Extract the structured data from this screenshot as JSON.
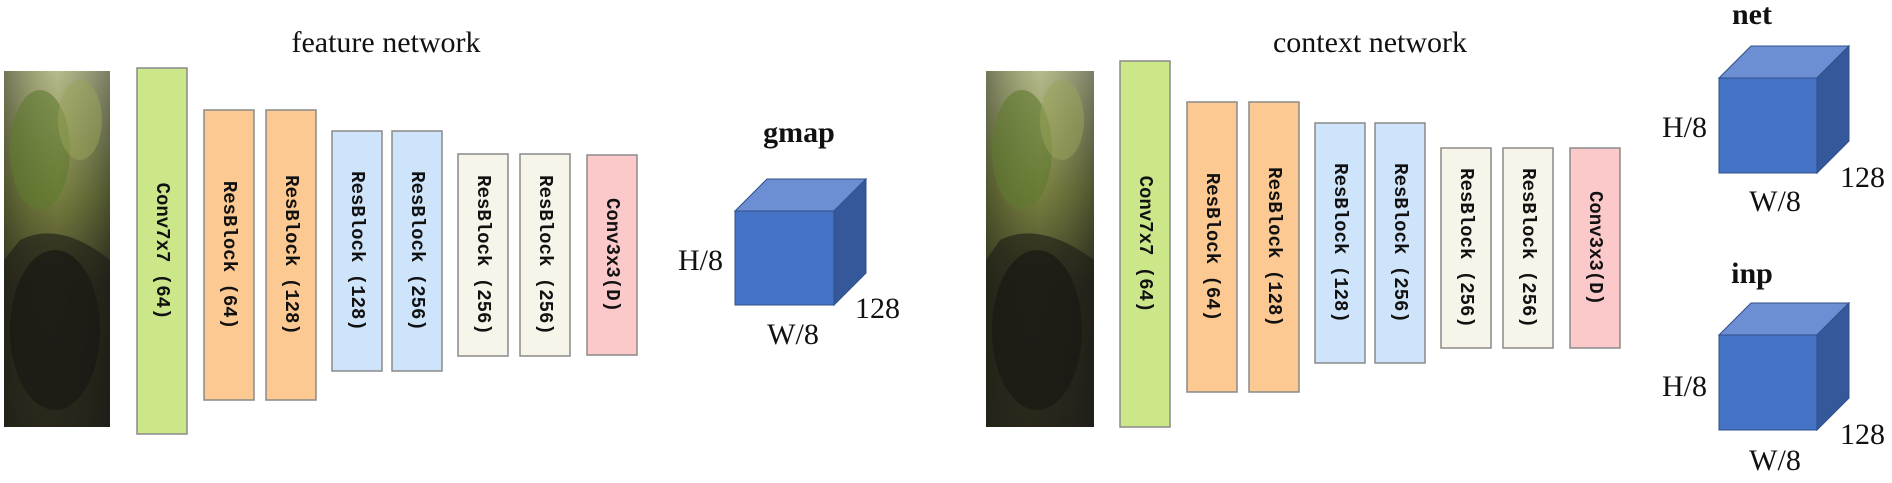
{
  "colors": {
    "conv7": "#cbe78a",
    "res_orange": "#fcc992",
    "res_blue": "#cde4fb",
    "res_cream": "#f7f4ea",
    "conv3": "#fcc9cb",
    "cube_front": "#4472c4",
    "cube_top": "#6b8fd2",
    "cube_side": "#34589a",
    "stroke": "#8a8a8a"
  },
  "feature": {
    "title": "feature network",
    "layers": [
      {
        "label": "Conv7x7 (64)",
        "color": "conv7"
      },
      {
        "label": "ResBlock (64)",
        "color": "res_orange"
      },
      {
        "label": "ResBlock (128)",
        "color": "res_orange"
      },
      {
        "label": "ResBlock (128)",
        "color": "res_blue"
      },
      {
        "label": "ResBlock (256)",
        "color": "res_blue"
      },
      {
        "label": "ResBlock (256)",
        "color": "res_cream"
      },
      {
        "label": "ResBlock (256)",
        "color": "res_cream"
      },
      {
        "label": "Conv3x3(D)",
        "color": "conv3"
      }
    ],
    "output": {
      "name": "gmap",
      "height": "H/8",
      "width": "W/8",
      "depth": "128"
    }
  },
  "context": {
    "title": "context network",
    "layers": [
      {
        "label": "Conv7x7 (64)",
        "color": "conv7"
      },
      {
        "label": "ResBlock (64)",
        "color": "res_orange"
      },
      {
        "label": "ResBlock (128)",
        "color": "res_orange"
      },
      {
        "label": "ResBlock (128)",
        "color": "res_blue"
      },
      {
        "label": "ResBlock (256)",
        "color": "res_blue"
      },
      {
        "label": "ResBlock (256)",
        "color": "res_cream"
      },
      {
        "label": "ResBlock (256)",
        "color": "res_cream"
      },
      {
        "label": "Conv3x3(D)",
        "color": "conv3"
      }
    ],
    "outputs": [
      {
        "name": "net",
        "height": "H/8",
        "width": "W/8",
        "depth": "128"
      },
      {
        "name": "inp",
        "height": "H/8",
        "width": "W/8",
        "depth": "128"
      }
    ]
  }
}
